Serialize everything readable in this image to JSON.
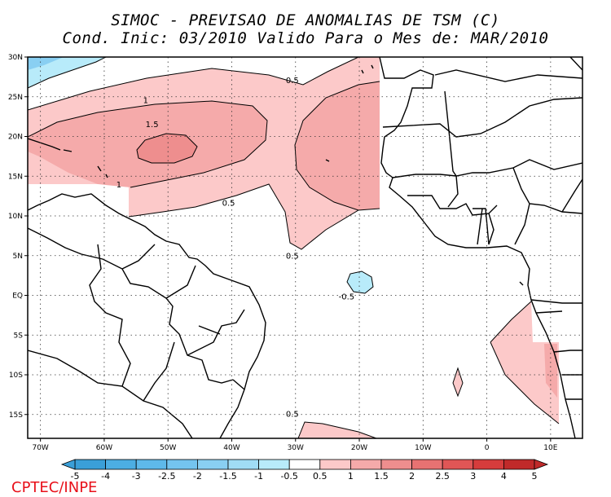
{
  "header": {
    "title": "SIMOC - PREVISAO DE ANOMALIAS DE TSM (C)",
    "subtitle": "Cond. Inic: 03/2010   Valido Para o Mes de: MAR/2010"
  },
  "map": {
    "lon_range": [
      -72,
      15
    ],
    "lat_range": [
      -18,
      30
    ],
    "lat_ticks": [
      {
        "value": 30,
        "label": "30N"
      },
      {
        "value": 25,
        "label": "25N"
      },
      {
        "value": 20,
        "label": "20N"
      },
      {
        "value": 15,
        "label": "15N"
      },
      {
        "value": 10,
        "label": "10N"
      },
      {
        "value": 5,
        "label": "5N"
      },
      {
        "value": 0,
        "label": "EQ"
      },
      {
        "value": -5,
        "label": "5S"
      },
      {
        "value": -10,
        "label": "10S"
      },
      {
        "value": -15,
        "label": "15S"
      }
    ],
    "lon_ticks": [
      {
        "value": -70,
        "label": "70W"
      },
      {
        "value": -60,
        "label": "60W"
      },
      {
        "value": -50,
        "label": "50W"
      },
      {
        "value": -40,
        "label": "40W"
      },
      {
        "value": -30,
        "label": "30W"
      },
      {
        "value": -20,
        "label": "20W"
      },
      {
        "value": -10,
        "label": "10W"
      },
      {
        "value": 0,
        "label": "0"
      },
      {
        "value": 10,
        "label": "10E"
      }
    ],
    "contour_labels": [
      {
        "text": "0.5",
        "lon": -30.5,
        "lat": 26.7
      },
      {
        "text": "1",
        "lon": -53.5,
        "lat": 24.2
      },
      {
        "text": "1.5",
        "lon": -52.5,
        "lat": 21.2
      },
      {
        "text": "1",
        "lon": -57.7,
        "lat": 13.6
      },
      {
        "text": "0.5",
        "lon": -40.5,
        "lat": 11.3
      },
      {
        "text": "0.5",
        "lon": -30.5,
        "lat": 4.6
      },
      {
        "text": "-0.5",
        "lon": -22,
        "lat": -0.5
      },
      {
        "text": "0.5",
        "lon": -30.5,
        "lat": -15.3
      }
    ],
    "colorbar": {
      "labels": [
        "-5",
        "-4",
        "-3",
        "-2.5",
        "-2",
        "-1.5",
        "-1",
        "-0.5",
        "0.5",
        "1",
        "1.5",
        "2",
        "2.5",
        "3",
        "4",
        "5"
      ],
      "colors": [
        "#3a9fd8",
        "#4caee3",
        "#5eb9ea",
        "#74c4ef",
        "#89cff2",
        "#a0dcf5",
        "#b8ebfa",
        "#ffffff",
        "#fcc9c9",
        "#f5aaaa",
        "#ee8e8e",
        "#e77272",
        "#e05656",
        "#d63c3c",
        "#c02a2a"
      ]
    }
  },
  "colors": {
    "anomaly_0_5": "#fcc9c9",
    "anomaly_1_0": "#f5aaaa",
    "anomaly_1_5": "#ee8e8e",
    "anomaly_neg_0_5": "#b8ebfa",
    "anomaly_neg_1_0": "#89cff2",
    "credit": "#e8101a"
  },
  "footer": {
    "credit": "CPTEC/INPE"
  }
}
